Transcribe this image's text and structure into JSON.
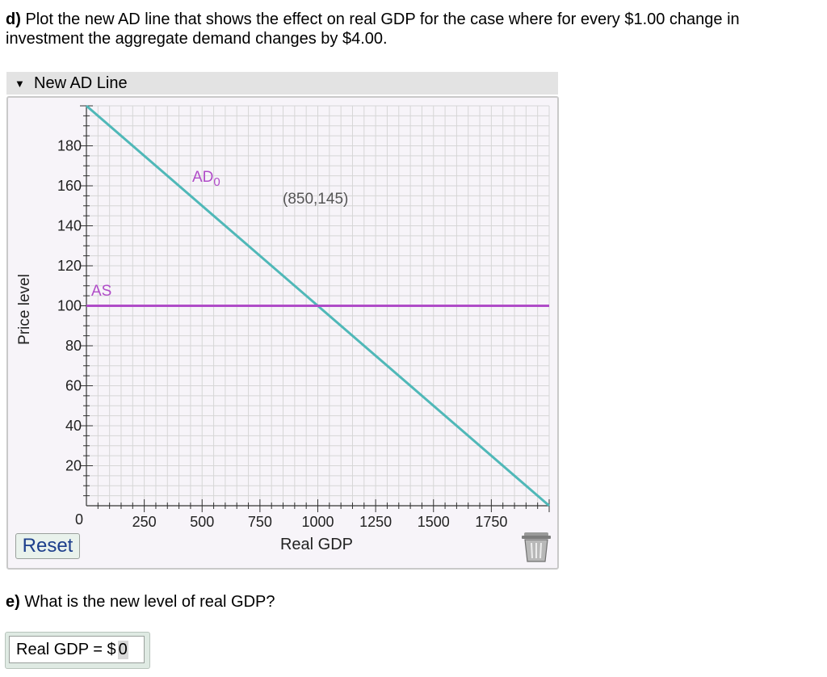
{
  "question_d": {
    "label": "d)",
    "text": " Plot the new AD line that shows the effect on real GDP for the case where for every $1.00 change in investment the aggregate demand changes by $4.00."
  },
  "panel": {
    "title": "New AD Line",
    "collapse_icon": "caret-down-icon"
  },
  "graph": {
    "xlabel": "Real GDP",
    "ylabel": "Price level",
    "xticks": [
      "250",
      "500",
      "750",
      "1000",
      "1250",
      "1500",
      "1750"
    ],
    "yticks": [
      "20",
      "40",
      "60",
      "80",
      "100",
      "120",
      "140",
      "160",
      "180"
    ],
    "origin_label": "0",
    "ad_label": "AD",
    "ad_subscript": "0",
    "as_label": "AS",
    "point_label": "(850,145)",
    "colors": {
      "ad": "#4fb8b8",
      "as": "#b04cc8",
      "grid": "#d6d6d6",
      "background": "#f7f4f9"
    }
  },
  "chart_data": {
    "type": "line",
    "xlabel": "Real GDP",
    "ylabel": "Price level",
    "xlim": [
      0,
      2000
    ],
    "ylim": [
      0,
      200
    ],
    "series": [
      {
        "name": "AD0",
        "x": [
          0,
          2000
        ],
        "y": [
          200,
          0
        ]
      },
      {
        "name": "AS",
        "x": [
          0,
          2000
        ],
        "y": [
          100,
          100
        ]
      }
    ],
    "annotations": [
      {
        "text": "(850,145)"
      }
    ],
    "grid": true
  },
  "controls": {
    "reset_label": "Reset",
    "trash_icon": "trash-icon"
  },
  "question_e": {
    "label": "e)",
    "text": " What is the new level of real GDP?"
  },
  "answer": {
    "prefix": "Real GDP = $",
    "value": "0"
  }
}
